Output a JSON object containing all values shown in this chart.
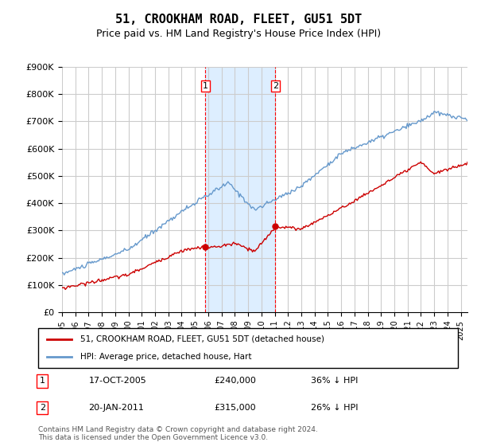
{
  "title": "51, CROOKHAM ROAD, FLEET, GU51 5DT",
  "subtitle": "Price paid vs. HM Land Registry's House Price Index (HPI)",
  "ylabel_ticks": [
    "£0",
    "£100K",
    "£200K",
    "£300K",
    "£400K",
    "£500K",
    "£600K",
    "£700K",
    "£800K",
    "£900K"
  ],
  "ylim": [
    0,
    900000
  ],
  "xlim_start": 1995.0,
  "xlim_end": 2025.5,
  "sale1_x": 2005.79,
  "sale1_y": 240000,
  "sale1_label": "1",
  "sale1_date": "17-OCT-2005",
  "sale1_price": "£240,000",
  "sale1_pct": "36% ↓ HPI",
  "sale2_x": 2011.05,
  "sale2_y": 315000,
  "sale2_label": "2",
  "sale2_date": "20-JAN-2011",
  "sale2_price": "£315,000",
  "sale2_pct": "26% ↓ HPI",
  "shade_x1": 2005.79,
  "shade_x2": 2011.05,
  "line1_color": "#cc0000",
  "line2_color": "#6699cc",
  "shade_color": "#ddeeff",
  "grid_color": "#cccccc",
  "legend1_label": "51, CROOKHAM ROAD, FLEET, GU51 5DT (detached house)",
  "legend2_label": "HPI: Average price, detached house, Hart",
  "footnote": "Contains HM Land Registry data © Crown copyright and database right 2024.\nThis data is licensed under the Open Government Licence v3.0.",
  "xticks": [
    1995,
    1996,
    1997,
    1998,
    1999,
    2000,
    2001,
    2002,
    2003,
    2004,
    2005,
    2006,
    2007,
    2008,
    2009,
    2010,
    2011,
    2012,
    2013,
    2014,
    2015,
    2016,
    2017,
    2018,
    2019,
    2020,
    2021,
    2022,
    2023,
    2024,
    2025
  ]
}
